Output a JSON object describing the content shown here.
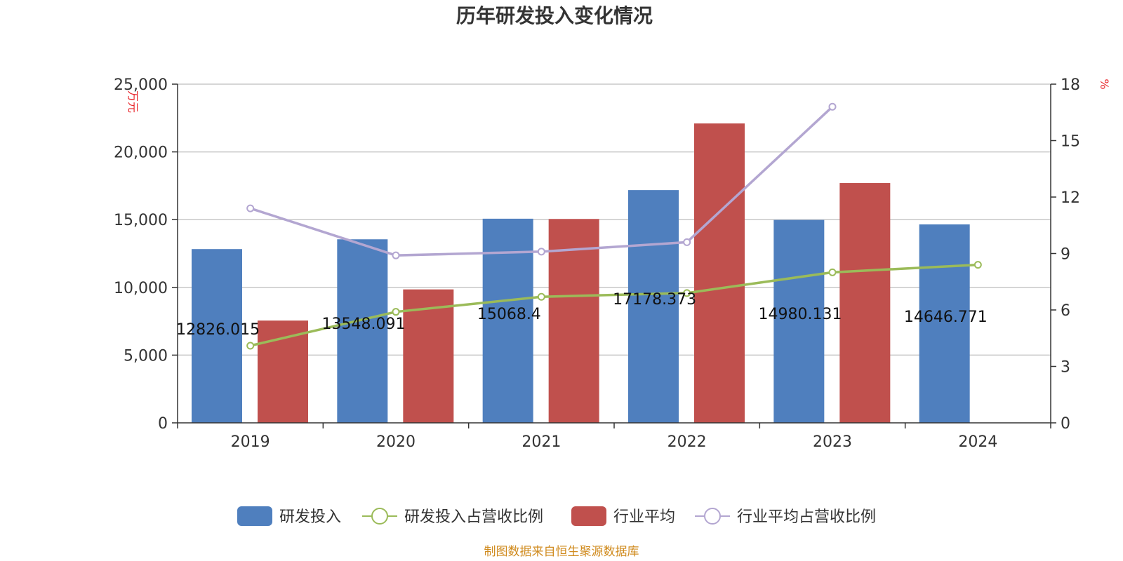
{
  "chart_data": {
    "type": "bar",
    "title": "历年研发投入变化情况",
    "categories": [
      "2019",
      "2020",
      "2021",
      "2022",
      "2023",
      "2024"
    ],
    "y_left": {
      "unit": "万元",
      "range": [
        0,
        25000
      ],
      "ticks": [
        "0",
        "5,000",
        "10,000",
        "15,000",
        "20,000",
        "25,000"
      ]
    },
    "y_right": {
      "unit": "%",
      "range": [
        0,
        18
      ],
      "ticks": [
        "0",
        "3",
        "6",
        "9",
        "12",
        "15",
        "18"
      ]
    },
    "grid": true,
    "legend_position": "bottom",
    "series": [
      {
        "name": "研发投入",
        "kind": "bar",
        "axis": "left",
        "color": "#4f7fbe",
        "values": [
          12826.015,
          13548.091,
          15068.4,
          17178.373,
          14980.131,
          14646.771
        ],
        "labels": [
          "12826.015",
          "13548.091",
          "15068.4",
          "17178.373",
          "14980.131",
          "14646.771"
        ]
      },
      {
        "name": "研发投入占营收比例",
        "kind": "line",
        "axis": "right",
        "color": "#9bbb59",
        "values": [
          4.1,
          5.9,
          6.7,
          6.9,
          8.0,
          8.4
        ]
      },
      {
        "name": "行业平均",
        "kind": "bar",
        "axis": "left",
        "color": "#c0504d",
        "values": [
          7550,
          9850,
          15050,
          22100,
          17700,
          null
        ]
      },
      {
        "name": "行业平均占营收比例",
        "kind": "line",
        "axis": "right",
        "color": "#b3a6d1",
        "values": [
          11.4,
          8.9,
          9.1,
          9.6,
          16.8,
          null
        ]
      }
    ],
    "source": "制图数据来自恒生聚源数据库"
  }
}
